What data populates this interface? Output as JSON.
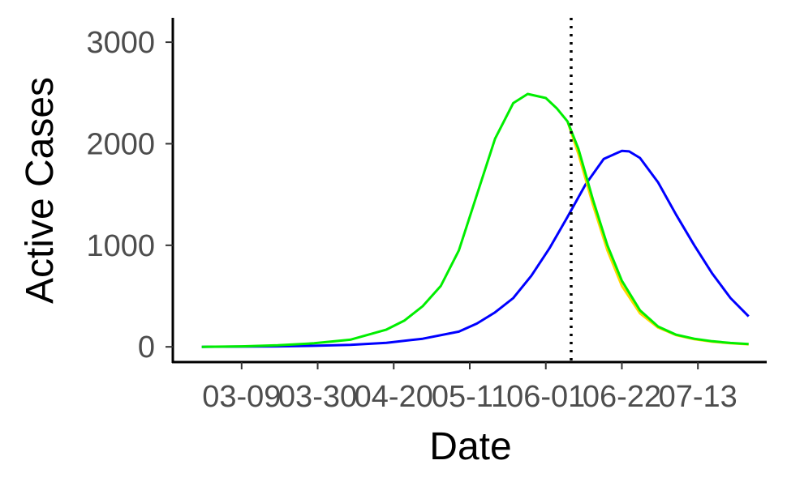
{
  "chart_data": {
    "type": "line",
    "title": "",
    "xlabel": "Date",
    "ylabel": "Active Cases",
    "x_tick_labels": [
      "03-09",
      "03-30",
      "04-20",
      "05-11",
      "06-01",
      "06-22",
      "07-13"
    ],
    "x_ticks": [
      "2020-03-09",
      "2020-03-30",
      "2020-04-20",
      "2020-05-11",
      "2020-06-01",
      "2020-06-22",
      "2020-07-13"
    ],
    "y_ticks": [
      0,
      1000,
      2000,
      3000
    ],
    "y_tick_labels": [
      "0",
      "1000",
      "2000",
      "3000"
    ],
    "xlim": [
      "2020-02-19",
      "2020-08-01"
    ],
    "ylim": [
      -150,
      3240
    ],
    "grid": false,
    "legend": "none",
    "vline": {
      "x": "2020-06-08",
      "style": "dotted",
      "color": "#000000"
    },
    "series": [
      {
        "color": "#0000FF",
        "x": [
          "2020-02-27",
          "2020-03-09",
          "2020-03-19",
          "2020-03-29",
          "2020-04-08",
          "2020-04-18",
          "2020-04-28",
          "2020-05-08",
          "2020-05-13",
          "2020-05-18",
          "2020-05-23",
          "2020-05-28",
          "2020-06-02",
          "2020-06-07",
          "2020-06-12",
          "2020-06-17",
          "2020-06-22",
          "2020-06-24",
          "2020-06-27",
          "2020-07-02",
          "2020-07-07",
          "2020-07-12",
          "2020-07-17",
          "2020-07-22",
          "2020-07-27"
        ],
        "y": [
          0,
          2,
          5,
          10,
          20,
          40,
          80,
          150,
          230,
          340,
          480,
          700,
          970,
          1280,
          1600,
          1850,
          1930,
          1925,
          1860,
          1620,
          1300,
          1000,
          720,
          480,
          300
        ]
      },
      {
        "color": "#FFD700",
        "x": [
          "2020-06-07",
          "2020-06-10",
          "2020-06-14",
          "2020-06-18",
          "2020-06-22",
          "2020-06-27",
          "2020-07-02",
          "2020-07-07",
          "2020-07-12",
          "2020-07-17",
          "2020-07-22",
          "2020-07-27"
        ],
        "y": [
          2220,
          1900,
          1400,
          950,
          600,
          330,
          190,
          115,
          75,
          50,
          35,
          25
        ]
      },
      {
        "color": "#00EE00",
        "x": [
          "2020-02-27",
          "2020-03-09",
          "2020-03-19",
          "2020-03-29",
          "2020-04-08",
          "2020-04-18",
          "2020-04-23",
          "2020-04-28",
          "2020-05-03",
          "2020-05-08",
          "2020-05-13",
          "2020-05-18",
          "2020-05-23",
          "2020-05-27",
          "2020-06-01",
          "2020-06-04",
          "2020-06-07",
          "2020-06-10",
          "2020-06-14",
          "2020-06-18",
          "2020-06-22",
          "2020-06-27",
          "2020-07-02",
          "2020-07-07",
          "2020-07-12",
          "2020-07-17",
          "2020-07-22",
          "2020-07-27"
        ],
        "y": [
          0,
          5,
          15,
          35,
          70,
          170,
          260,
          400,
          600,
          950,
          1500,
          2050,
          2400,
          2490,
          2450,
          2350,
          2220,
          1950,
          1450,
          1000,
          650,
          360,
          200,
          120,
          80,
          55,
          38,
          28
        ]
      }
    ]
  }
}
